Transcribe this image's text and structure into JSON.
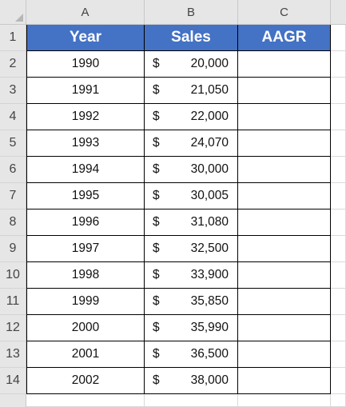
{
  "columns": [
    "A",
    "B",
    "C"
  ],
  "rows": [
    "1",
    "2",
    "3",
    "4",
    "5",
    "6",
    "7",
    "8",
    "9",
    "10",
    "11",
    "12",
    "13",
    "14"
  ],
  "header": {
    "year": "Year",
    "sales": "Sales",
    "aagr": "AAGR"
  },
  "currency_symbol": "$",
  "data": [
    {
      "year": "1990",
      "sales": "20,000",
      "aagr": ""
    },
    {
      "year": "1991",
      "sales": "21,050",
      "aagr": ""
    },
    {
      "year": "1992",
      "sales": "22,000",
      "aagr": ""
    },
    {
      "year": "1993",
      "sales": "24,070",
      "aagr": ""
    },
    {
      "year": "1994",
      "sales": "30,000",
      "aagr": ""
    },
    {
      "year": "1995",
      "sales": "30,005",
      "aagr": ""
    },
    {
      "year": "1996",
      "sales": "31,080",
      "aagr": ""
    },
    {
      "year": "1997",
      "sales": "32,500",
      "aagr": ""
    },
    {
      "year": "1998",
      "sales": "33,900",
      "aagr": ""
    },
    {
      "year": "1999",
      "sales": "35,850",
      "aagr": ""
    },
    {
      "year": "2000",
      "sales": "35,990",
      "aagr": ""
    },
    {
      "year": "2001",
      "sales": "36,500",
      "aagr": ""
    },
    {
      "year": "2002",
      "sales": "38,000",
      "aagr": ""
    }
  ],
  "colors": {
    "header_fill": "#4472c4",
    "header_text": "#ffffff",
    "heading_bg": "#e6e6e6"
  }
}
